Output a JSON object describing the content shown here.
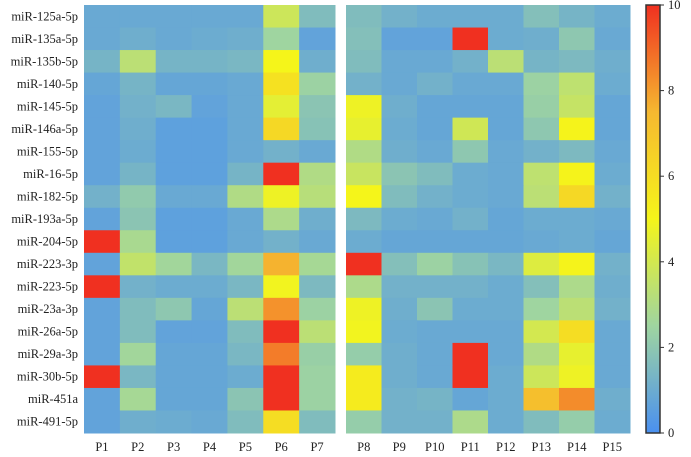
{
  "chart_data": {
    "type": "heatmap",
    "rows": [
      "miR-125a-5p",
      "miR-135a-5p",
      "miR-135b-5p",
      "miR-140-5p",
      "miR-145-5p",
      "miR-146a-5p",
      "miR-155-5p",
      "miR-16-5p",
      "miR-182-5p",
      "miR-193a-5p",
      "miR-204-5p",
      "miR-223-3p",
      "miR-223-5p",
      "miR-23a-3p",
      "miR-26a-5p",
      "miR-29a-3p",
      "miR-30b-5p",
      "miR-451a",
      "miR-491-5p"
    ],
    "panels": [
      {
        "columns": [
          "P1",
          "P2",
          "P3",
          "P4",
          "P5",
          "P6",
          "P7"
        ],
        "values": [
          [
            0.9,
            0.9,
            0.9,
            0.9,
            0.9,
            3.8,
            1.6
          ],
          [
            0.9,
            1.1,
            0.9,
            1.0,
            1.1,
            2.5,
            0.7
          ],
          [
            1.3,
            3.3,
            1.3,
            1.3,
            1.4,
            5.0,
            1.1
          ],
          [
            0.8,
            1.3,
            0.8,
            0.8,
            0.9,
            5.8,
            2.4
          ],
          [
            0.7,
            1.2,
            1.4,
            0.7,
            0.9,
            4.5,
            1.9
          ],
          [
            0.7,
            1.1,
            0.6,
            0.6,
            0.9,
            6.2,
            1.8
          ],
          [
            0.7,
            1.0,
            0.6,
            0.6,
            0.9,
            1.2,
            0.9
          ],
          [
            0.7,
            1.3,
            0.6,
            0.6,
            1.3,
            10.0,
            3.0
          ],
          [
            1.2,
            2.1,
            0.9,
            0.9,
            3.0,
            4.8,
            3.2
          ],
          [
            0.7,
            1.9,
            0.6,
            0.6,
            0.9,
            2.9,
            1.1
          ],
          [
            10.0,
            2.8,
            0.6,
            0.6,
            0.9,
            1.2,
            0.9
          ],
          [
            0.7,
            3.5,
            2.6,
            1.4,
            2.6,
            7.6,
            2.7
          ],
          [
            10.0,
            1.2,
            1.0,
            1.0,
            1.4,
            4.9,
            1.5
          ],
          [
            0.7,
            1.6,
            2.0,
            0.8,
            3.3,
            8.2,
            2.4
          ],
          [
            0.7,
            1.6,
            0.7,
            0.7,
            1.6,
            10.0,
            3.3
          ],
          [
            0.7,
            2.6,
            0.8,
            0.8,
            1.4,
            8.6,
            2.3
          ],
          [
            10.0,
            1.4,
            0.8,
            0.8,
            1.0,
            10.0,
            2.4
          ],
          [
            0.7,
            2.7,
            0.8,
            0.8,
            1.9,
            10.0,
            2.4
          ],
          [
            0.7,
            1.1,
            1.0,
            0.9,
            1.6,
            6.0,
            1.6
          ]
        ]
      },
      {
        "columns": [
          "P8",
          "P9",
          "P10",
          "P11",
          "P12",
          "P13",
          "P14",
          "P15"
        ],
        "values": [
          [
            1.6,
            1.2,
            1.0,
            1.0,
            1.0,
            1.7,
            1.3,
            1.0
          ],
          [
            1.7,
            0.7,
            0.7,
            10.0,
            1.0,
            1.1,
            2.0,
            0.9
          ],
          [
            1.6,
            0.9,
            0.9,
            1.2,
            3.3,
            1.3,
            1.5,
            1.1
          ],
          [
            1.2,
            0.9,
            1.2,
            0.9,
            0.9,
            2.4,
            3.4,
            1.0
          ],
          [
            4.8,
            1.1,
            0.8,
            0.8,
            0.8,
            2.3,
            3.6,
            0.8
          ],
          [
            4.6,
            1.0,
            0.8,
            3.9,
            0.8,
            2.0,
            5.1,
            0.8
          ],
          [
            3.0,
            1.1,
            0.9,
            2.0,
            0.9,
            1.2,
            1.5,
            0.9
          ],
          [
            3.7,
            1.9,
            1.6,
            1.0,
            0.9,
            3.4,
            5.1,
            1.0
          ],
          [
            5.0,
            1.6,
            1.2,
            1.0,
            0.9,
            3.3,
            6.2,
            1.2
          ],
          [
            1.5,
            1.0,
            0.9,
            1.2,
            0.8,
            1.0,
            1.0,
            0.9
          ],
          [
            1.0,
            0.8,
            0.8,
            0.8,
            0.8,
            0.9,
            1.0,
            0.8
          ],
          [
            10.0,
            1.7,
            2.4,
            1.8,
            1.4,
            4.3,
            5.1,
            1.2
          ],
          [
            2.9,
            1.2,
            1.2,
            1.2,
            1.0,
            1.7,
            2.9,
            1.1
          ],
          [
            4.8,
            1.1,
            1.9,
            1.0,
            1.0,
            2.5,
            3.3,
            1.2
          ],
          [
            4.9,
            1.0,
            0.9,
            0.9,
            0.9,
            4.0,
            6.0,
            0.9
          ],
          [
            2.2,
            1.1,
            0.9,
            10.0,
            0.9,
            3.0,
            4.6,
            0.9
          ],
          [
            5.4,
            1.1,
            0.9,
            10.0,
            1.0,
            3.8,
            4.8,
            0.9
          ],
          [
            5.4,
            1.2,
            1.3,
            0.8,
            1.0,
            7.2,
            8.3,
            1.1
          ],
          [
            2.2,
            1.2,
            1.2,
            2.9,
            1.0,
            1.6,
            2.2,
            1.0
          ]
        ]
      }
    ],
    "colorbar": {
      "min": 0,
      "max": 10,
      "ticks": [
        0,
        2,
        4,
        6,
        8,
        10
      ],
      "colors": [
        "#4a90f0",
        "#9fd5a0",
        "#f5f51a",
        "#f5b830",
        "#f03020"
      ]
    },
    "title": "",
    "xlabel": "",
    "ylabel": ""
  }
}
